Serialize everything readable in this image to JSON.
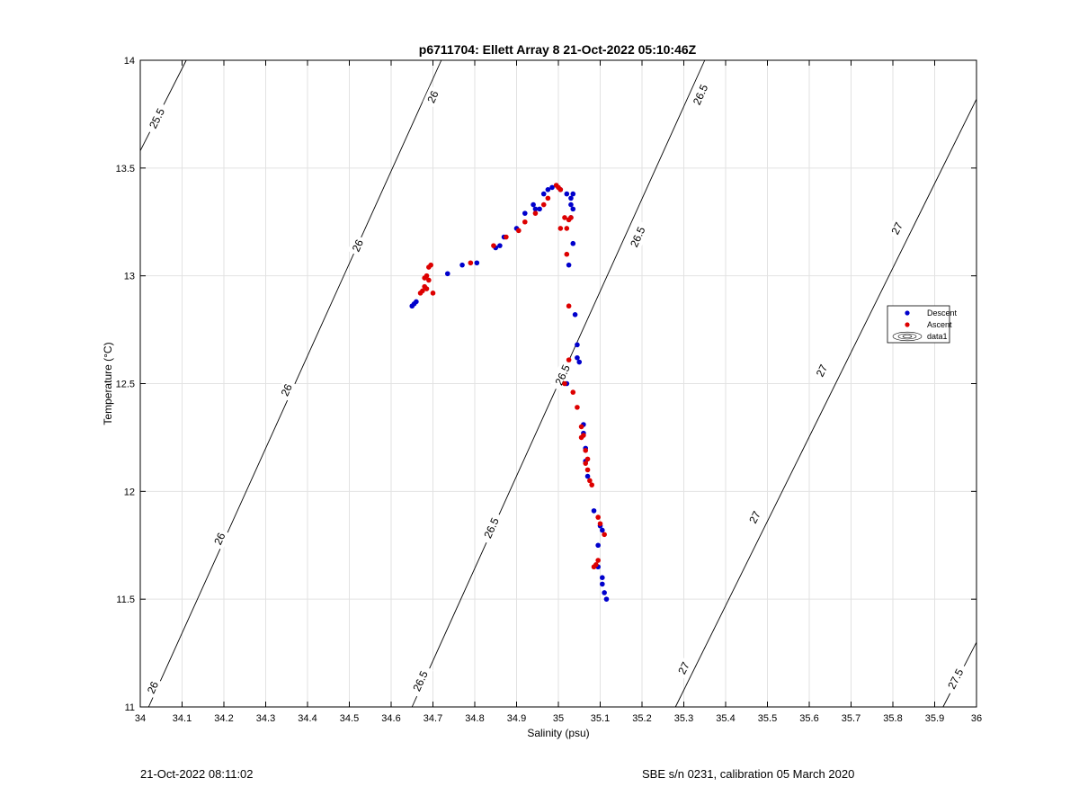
{
  "chart_data": {
    "type": "scatter",
    "title": "p6711704: Ellett Array 8 21-Oct-2022 05:10:46Z",
    "xlabel": "Salinity (psu)",
    "ylabel": "Temperature (°C)",
    "xlim": [
      34,
      36
    ],
    "ylim": [
      11,
      14
    ],
    "xticks": [
      "34",
      "34.1",
      "34.2",
      "34.3",
      "34.4",
      "34.5",
      "34.6",
      "34.7",
      "34.8",
      "34.9",
      "35",
      "35.1",
      "35.2",
      "35.3",
      "35.4",
      "35.5",
      "35.6",
      "35.7",
      "35.8",
      "35.9",
      "36"
    ],
    "yticks": [
      "11",
      "11.5",
      "12",
      "12.5",
      "13",
      "13.5",
      "14"
    ],
    "grid": true,
    "legend_position": "right",
    "legend": [
      "Descent",
      "Ascent",
      "data1"
    ],
    "colors": {
      "descent": "#0000cc",
      "ascent": "#dd0000",
      "contour": "#000000",
      "grid": "#e2e2e2"
    },
    "series": [
      {
        "name": "Descent",
        "points": [
          [
            34.65,
            12.86
          ],
          [
            34.655,
            12.87
          ],
          [
            34.66,
            12.88
          ],
          [
            34.735,
            13.01
          ],
          [
            34.77,
            13.05
          ],
          [
            34.805,
            13.06
          ],
          [
            34.85,
            13.13
          ],
          [
            34.86,
            13.14
          ],
          [
            34.87,
            13.18
          ],
          [
            34.9,
            13.22
          ],
          [
            34.92,
            13.29
          ],
          [
            34.94,
            13.33
          ],
          [
            34.945,
            13.31
          ],
          [
            34.955,
            13.31
          ],
          [
            34.965,
            13.38
          ],
          [
            34.975,
            13.4
          ],
          [
            34.985,
            13.41
          ],
          [
            35.005,
            13.4
          ],
          [
            35.02,
            13.38
          ],
          [
            35.03,
            13.36
          ],
          [
            35.035,
            13.38
          ],
          [
            35.03,
            13.33
          ],
          [
            35.035,
            13.31
          ],
          [
            35.03,
            13.27
          ],
          [
            35.035,
            13.15
          ],
          [
            35.025,
            13.05
          ],
          [
            35.04,
            12.82
          ],
          [
            35.045,
            12.68
          ],
          [
            35.045,
            12.62
          ],
          [
            35.05,
            12.6
          ],
          [
            35.02,
            12.5
          ],
          [
            35.06,
            12.31
          ],
          [
            35.06,
            12.27
          ],
          [
            35.065,
            12.2
          ],
          [
            35.065,
            12.14
          ],
          [
            35.07,
            12.07
          ],
          [
            35.085,
            11.91
          ],
          [
            35.1,
            11.84
          ],
          [
            35.105,
            11.82
          ],
          [
            35.095,
            11.75
          ],
          [
            35.095,
            11.65
          ],
          [
            35.105,
            11.6
          ],
          [
            35.105,
            11.57
          ],
          [
            35.11,
            11.53
          ],
          [
            35.115,
            11.5
          ]
        ]
      },
      {
        "name": "Ascent",
        "points": [
          [
            34.67,
            12.92
          ],
          [
            34.675,
            12.93
          ],
          [
            34.68,
            12.95
          ],
          [
            34.685,
            12.94
          ],
          [
            34.68,
            12.99
          ],
          [
            34.685,
            13.0
          ],
          [
            34.69,
            12.98
          ],
          [
            34.69,
            13.04
          ],
          [
            34.695,
            13.05
          ],
          [
            34.7,
            12.92
          ],
          [
            34.79,
            13.06
          ],
          [
            34.845,
            13.14
          ],
          [
            34.875,
            13.18
          ],
          [
            34.905,
            13.21
          ],
          [
            34.92,
            13.25
          ],
          [
            34.945,
            13.29
          ],
          [
            34.965,
            13.33
          ],
          [
            34.975,
            13.36
          ],
          [
            34.995,
            13.42
          ],
          [
            35.0,
            13.41
          ],
          [
            35.005,
            13.4
          ],
          [
            35.005,
            13.22
          ],
          [
            35.015,
            13.27
          ],
          [
            35.02,
            13.22
          ],
          [
            35.025,
            13.26
          ],
          [
            35.03,
            13.27
          ],
          [
            35.02,
            13.1
          ],
          [
            35.025,
            12.86
          ],
          [
            35.025,
            12.61
          ],
          [
            35.015,
            12.5
          ],
          [
            35.035,
            12.46
          ],
          [
            35.045,
            12.39
          ],
          [
            35.055,
            12.3
          ],
          [
            35.06,
            12.26
          ],
          [
            35.055,
            12.25
          ],
          [
            35.065,
            12.19
          ],
          [
            35.07,
            12.15
          ],
          [
            35.065,
            12.13
          ],
          [
            35.07,
            12.1
          ],
          [
            35.075,
            12.05
          ],
          [
            35.08,
            12.03
          ],
          [
            35.095,
            11.88
          ],
          [
            35.1,
            11.85
          ],
          [
            35.11,
            11.8
          ],
          [
            35.095,
            11.68
          ],
          [
            35.09,
            11.66
          ],
          [
            35.085,
            11.65
          ]
        ]
      }
    ],
    "contours": [
      {
        "level": "25.5",
        "line": [
          [
            34.0,
            13.58
          ],
          [
            34.11,
            14.0
          ]
        ],
        "labels": [
          {
            "s": 34.04,
            "t": 13.73,
            "text": "25.5"
          }
        ]
      },
      {
        "level": "26",
        "line": [
          [
            34.02,
            11.0
          ],
          [
            34.72,
            14.0
          ]
        ],
        "labels": [
          {
            "s": 34.03,
            "t": 11.09,
            "text": "26"
          },
          {
            "s": 34.19,
            "t": 11.78,
            "text": "26"
          },
          {
            "s": 34.35,
            "t": 12.47,
            "text": "26"
          },
          {
            "s": 34.52,
            "t": 13.14,
            "text": "26"
          },
          {
            "s": 34.7,
            "t": 13.83,
            "text": "26"
          }
        ]
      },
      {
        "level": "26.5",
        "line": [
          [
            34.65,
            11.0
          ],
          [
            35.35,
            14.0
          ]
        ],
        "labels": [
          {
            "s": 34.67,
            "t": 11.12,
            "text": "26.5"
          },
          {
            "s": 34.84,
            "t": 11.83,
            "text": "26.5"
          },
          {
            "s": 35.01,
            "t": 12.54,
            "text": "26.5"
          },
          {
            "s": 35.19,
            "t": 13.18,
            "text": "26.5"
          },
          {
            "s": 35.34,
            "t": 13.84,
            "text": "26.5"
          }
        ]
      },
      {
        "level": "27",
        "line": [
          [
            35.28,
            11.0
          ],
          [
            36.0,
            13.82
          ]
        ],
        "labels": [
          {
            "s": 35.3,
            "t": 11.18,
            "text": "27"
          },
          {
            "s": 35.47,
            "t": 11.88,
            "text": "27"
          },
          {
            "s": 35.63,
            "t": 12.56,
            "text": "27"
          },
          {
            "s": 35.81,
            "t": 13.22,
            "text": "27"
          }
        ]
      },
      {
        "level": "27.5",
        "line": [
          [
            35.92,
            11.0
          ],
          [
            36.0,
            11.3
          ]
        ],
        "labels": [
          {
            "s": 35.95,
            "t": 11.13,
            "text": "27.5"
          }
        ]
      }
    ]
  },
  "footer": {
    "left": "21-Oct-2022 08:11:02",
    "right": "SBE s/n 0231, calibration 05 March 2020"
  }
}
